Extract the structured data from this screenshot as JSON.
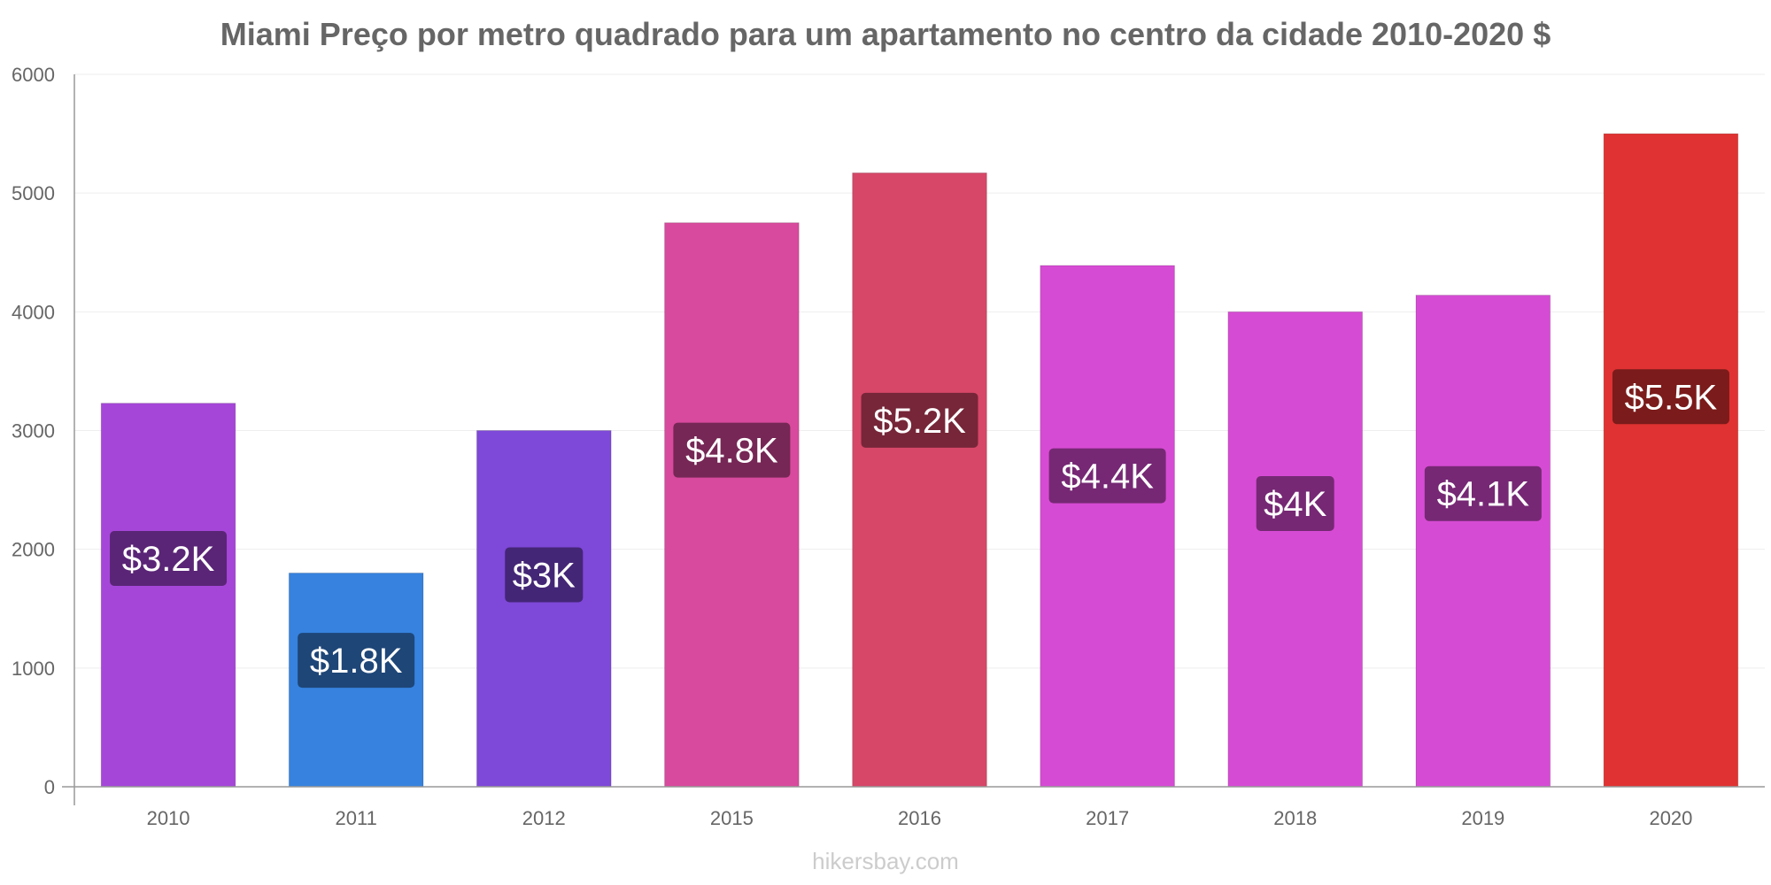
{
  "chart_data": {
    "type": "bar",
    "title": "Miami Preço por metro quadrado para um apartamento no centro da cidade 2010-2020 $",
    "categories": [
      "2010",
      "2011",
      "2012",
      "2015",
      "2016",
      "2017",
      "2018",
      "2019",
      "2020"
    ],
    "values": [
      3230,
      1800,
      3000,
      4750,
      5170,
      4390,
      4000,
      4140,
      5500
    ],
    "data_labels": [
      "$3.2K",
      "$1.8K",
      "$3K",
      "$4.8K",
      "$5.2K",
      "$4.4K",
      "$4K",
      "$4.1K",
      "$5.5K"
    ],
    "bar_colors": [
      "#a646d8",
      "#3682de",
      "#7e48d8",
      "#d84a9d",
      "#d64768",
      "#d64bd4",
      "#d64bd4",
      "#d64bd4",
      "#e03232"
    ],
    "label_bg_colors": [
      "#52216b",
      "#1c3f6b",
      "#3e226b",
      "#6b244e",
      "#6b2233",
      "#6b2569",
      "#6b2569",
      "#6b2569",
      "#701818"
    ],
    "ylim": [
      0,
      6000
    ],
    "yticks": [
      0,
      1000,
      2000,
      3000,
      4000,
      5000,
      6000
    ],
    "xlabel": "",
    "ylabel": "",
    "grid": true
  },
  "watermark": "hikersbay.com"
}
